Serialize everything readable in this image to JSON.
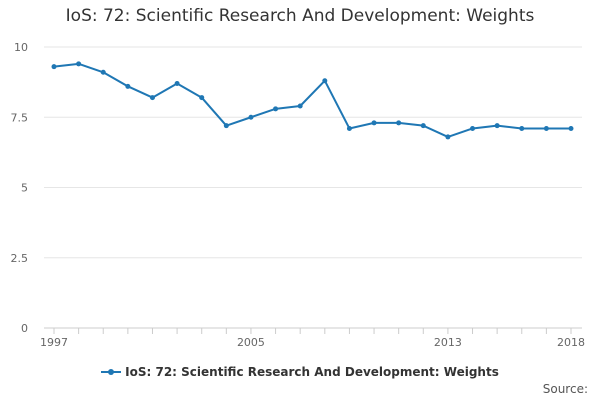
{
  "chart_data": {
    "type": "line",
    "title": "IoS: 72: Scientific Research And Development: Weights",
    "xlabel": "",
    "ylabel": "",
    "x": [
      1997,
      1998,
      1999,
      2000,
      2001,
      2002,
      2003,
      2004,
      2005,
      2006,
      2007,
      2008,
      2009,
      2010,
      2011,
      2012,
      2013,
      2014,
      2015,
      2016,
      2017,
      2018
    ],
    "series": [
      {
        "name": "IoS: 72: Scientific Research And Development: Weights",
        "values": [
          9.3,
          9.4,
          9.1,
          8.6,
          8.2,
          8.7,
          8.2,
          7.2,
          7.5,
          7.8,
          7.9,
          8.8,
          7.1,
          7.3,
          7.3,
          7.2,
          6.8,
          7.1,
          7.2,
          7.1,
          7.1,
          7.1
        ]
      }
    ],
    "ylim": [
      0,
      10
    ],
    "yticks": [
      "0",
      "2.5",
      "5",
      "7.5",
      "10"
    ],
    "xtick_labels": [
      "1997",
      "2005",
      "2013",
      "2018"
    ],
    "grid": true,
    "legend": "bottom",
    "color": "#1f77b4"
  },
  "source_label": "Source:"
}
